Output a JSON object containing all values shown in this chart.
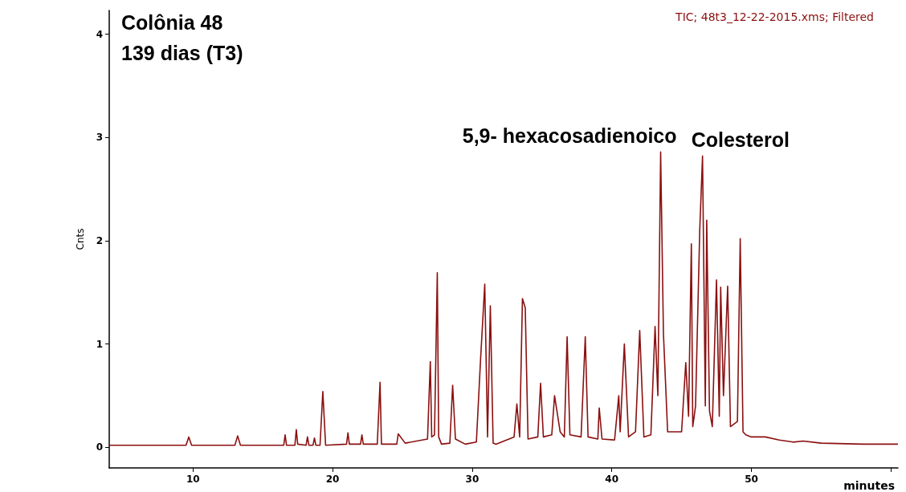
{
  "chart_data": {
    "type": "line",
    "xlabel": "minutes",
    "ylabel": "Cnts",
    "annotations": [
      "Colônia 48",
      "139 dias (T3)",
      "TIC; 48t3_12-22-2015.xms; Filtered",
      {
        "text": "5,9- hexacosadienoico",
        "x": 43.5,
        "y": 2.86
      },
      {
        "text": "Colesterol",
        "x": 46.5,
        "y": 2.82
      }
    ],
    "xlim": [
      4,
      60.5
    ],
    "xticks": [
      10,
      20,
      30,
      40,
      50,
      {
        "value": 60,
        "label": null
      }
    ],
    "ylim": [
      -0.2,
      4.23
    ],
    "yticks": [
      0,
      1,
      2,
      3,
      4
    ],
    "grid": false,
    "marker": "none",
    "line_style": "solid",
    "series": [
      {
        "color": "#8b1010",
        "x": [
          4,
          9.5,
          9.7,
          9.9,
          13.0,
          13.2,
          13.4,
          16.5,
          16.6,
          16.7,
          17.3,
          17.4,
          17.5,
          18.1,
          18.2,
          18.3,
          18.6,
          18.7,
          18.8,
          19.1,
          19.3,
          19.5,
          21.0,
          21.1,
          21.2,
          22.0,
          22.1,
          22.2,
          23.2,
          23.4,
          23.5,
          24.6,
          24.7,
          25.2,
          26.8,
          27.0,
          27.1,
          27.3,
          27.5,
          27.6,
          27.8,
          28.4,
          28.6,
          28.8,
          29.5,
          30.3,
          30.6,
          30.9,
          31.1,
          31.3,
          31.5,
          31.7,
          33.0,
          33.2,
          33.4,
          33.6,
          33.8,
          34.0,
          34.7,
          34.9,
          35.1,
          35.7,
          35.9,
          36.3,
          36.6,
          36.8,
          37.0,
          37.8,
          38.1,
          38.3,
          39.0,
          39.1,
          39.3,
          40.2,
          40.5,
          40.6,
          40.9,
          41.2,
          41.7,
          42.0,
          42.3,
          42.8,
          43.1,
          43.3,
          43.5,
          43.7,
          44.0,
          45.0,
          45.3,
          45.5,
          45.7,
          45.8,
          46.0,
          46.3,
          46.5,
          46.7,
          46.8,
          47.0,
          47.2,
          47.5,
          47.7,
          47.8,
          48.0,
          48.3,
          48.5,
          49.0,
          49.2,
          49.4,
          49.6,
          50.0,
          51.0,
          52.0,
          53.0,
          53.7,
          55.0,
          58.0,
          60.5
        ],
        "values": [
          0.02,
          0.02,
          0.1,
          0.02,
          0.02,
          0.11,
          0.02,
          0.02,
          0.12,
          0.02,
          0.02,
          0.17,
          0.03,
          0.02,
          0.1,
          0.02,
          0.02,
          0.09,
          0.02,
          0.02,
          0.54,
          0.02,
          0.03,
          0.14,
          0.03,
          0.03,
          0.12,
          0.03,
          0.03,
          0.63,
          0.03,
          0.03,
          0.13,
          0.04,
          0.08,
          0.83,
          0.1,
          0.12,
          1.69,
          0.1,
          0.03,
          0.04,
          0.6,
          0.08,
          0.03,
          0.05,
          0.85,
          1.58,
          0.1,
          1.37,
          0.04,
          0.03,
          0.1,
          0.42,
          0.1,
          1.44,
          1.35,
          0.08,
          0.1,
          0.62,
          0.1,
          0.12,
          0.5,
          0.15,
          0.1,
          1.07,
          0.12,
          0.1,
          1.07,
          0.1,
          0.08,
          0.38,
          0.08,
          0.07,
          0.5,
          0.15,
          1.0,
          0.1,
          0.15,
          1.13,
          0.1,
          0.12,
          1.17,
          0.5,
          2.86,
          1.1,
          0.15,
          0.15,
          0.82,
          0.3,
          1.97,
          0.2,
          0.4,
          2.1,
          2.82,
          0.4,
          2.2,
          0.35,
          0.2,
          1.62,
          0.3,
          1.55,
          0.5,
          1.56,
          0.2,
          0.25,
          2.02,
          0.15,
          0.12,
          0.1,
          0.1,
          0.07,
          0.05,
          0.06,
          0.04,
          0.03,
          0.03
        ]
      }
    ]
  }
}
